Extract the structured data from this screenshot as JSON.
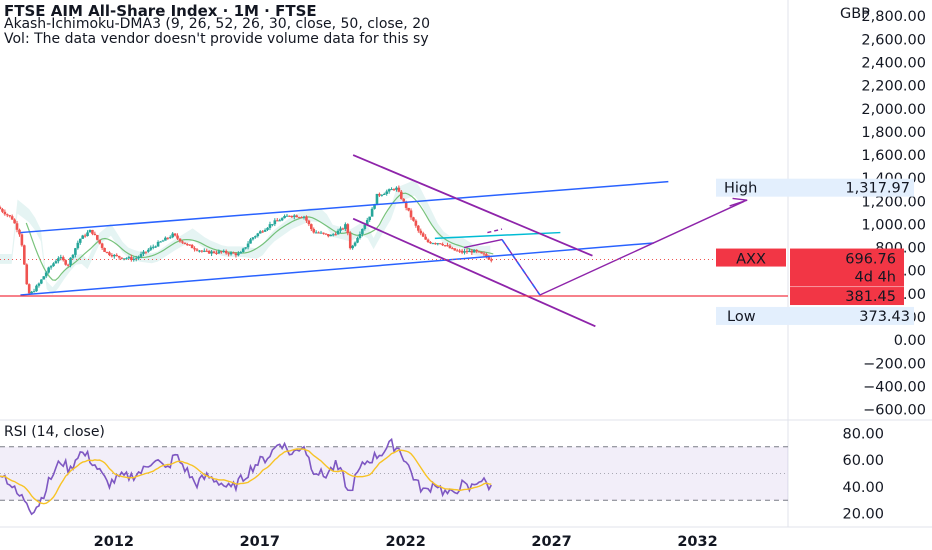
{
  "header": {
    "title": "FTSE AIM All-Share Index · 1M · FTSE",
    "indicator": "Akash-Ichimoku-DMA3 (9, 26, 52, 26, 30, close, 50, close, 20",
    "volume_note": "Vol: The data vendor doesn't provide volume data for this sy"
  },
  "currency": "GBP",
  "colors": {
    "up": "#26a69a",
    "down": "#ef5350",
    "trend_blue": "#2962ff",
    "channel_purple": "#8e24aa",
    "rsi_line": "#7e57c2",
    "rsi_ma": "#f7c325",
    "red_level": "#f23645"
  },
  "chart_data": [
    {
      "type": "candlestick",
      "y_axis_ticks": [
        "2,800.00",
        "2,600.00",
        "2,400.00",
        "2,200.00",
        "2,000.00",
        "1,800.00",
        "1,600.00",
        "1,400.00",
        "1,200.00",
        "1,000.00",
        "800.00",
        "600.00",
        "400.00",
        "200.00",
        "0.00",
        "−200.00",
        "−400.00",
        "−600.00"
      ],
      "y_axis_values": [
        2800,
        2600,
        2400,
        2200,
        2000,
        1800,
        1600,
        1400,
        1200,
        1000,
        800,
        600,
        400,
        200,
        0,
        -200,
        -400,
        -600
      ],
      "ylim": [
        -690,
        2940
      ],
      "x_axis_ticks": [
        "2012",
        "2017",
        "2022",
        "2027",
        "2032"
      ],
      "x_axis_values": [
        2012,
        2017,
        2022,
        2027,
        2032
      ],
      "xlim": [
        2008.1,
        2035.1
      ],
      "labels": {
        "high": {
          "text": "High",
          "value": "1,317.97"
        },
        "symbol": {
          "text": "AXX",
          "value": "696.76",
          "countdown": "4d 4h"
        },
        "level": {
          "value": "381.45"
        },
        "low": {
          "text": "Low",
          "value": "373.43"
        }
      },
      "ohlc_anchors": [
        [
          2008.1,
          1150
        ],
        [
          2008.6,
          1050
        ],
        [
          2008.9,
          900
        ],
        [
          2009.1,
          470
        ],
        [
          2009.2,
          390
        ],
        [
          2009.5,
          480
        ],
        [
          2009.8,
          600
        ],
        [
          2010.2,
          720
        ],
        [
          2010.5,
          650
        ],
        [
          2010.9,
          870
        ],
        [
          2011.3,
          950
        ],
        [
          2011.8,
          760
        ],
        [
          2012.2,
          720
        ],
        [
          2012.8,
          700
        ],
        [
          2013.5,
          820
        ],
        [
          2014.1,
          910
        ],
        [
          2014.6,
          820
        ],
        [
          2015.2,
          760
        ],
        [
          2015.8,
          760
        ],
        [
          2016.4,
          740
        ],
        [
          2016.8,
          880
        ],
        [
          2017.5,
          1010
        ],
        [
          2018.1,
          1080
        ],
        [
          2018.6,
          1070
        ],
        [
          2018.9,
          940
        ],
        [
          2019.5,
          900
        ],
        [
          2019.9,
          960
        ],
        [
          2020.05,
          1000
        ],
        [
          2020.2,
          780
        ],
        [
          2020.4,
          880
        ],
        [
          2020.9,
          1100
        ],
        [
          2021.1,
          1250
        ],
        [
          2021.5,
          1290
        ],
        [
          2021.75,
          1318
        ],
        [
          2022.1,
          1150
        ],
        [
          2022.5,
          950
        ],
        [
          2022.8,
          850
        ],
        [
          2023.3,
          840
        ],
        [
          2023.7,
          780
        ],
        [
          2024.0,
          760
        ],
        [
          2024.4,
          770
        ],
        [
          2024.8,
          730
        ],
        [
          2025.0,
          697
        ]
      ],
      "annotations": [
        "ascending channel upper line",
        "ascending channel lower line",
        "descending channel upper line",
        "descending channel lower line",
        "projected path",
        "support level 381.45"
      ]
    },
    {
      "type": "line",
      "title": "RSI (14, close)",
      "y_axis_ticks": [
        "80.00",
        "60.00",
        "40.00",
        "20.00"
      ],
      "y_axis_values": [
        80,
        60,
        40,
        20
      ],
      "ylim": [
        10,
        90
      ],
      "overbought": 70,
      "oversold": 30,
      "rsi_anchors": [
        [
          2008.1,
          52
        ],
        [
          2008.4,
          44
        ],
        [
          2008.7,
          34
        ],
        [
          2009.0,
          30
        ],
        [
          2009.2,
          22
        ],
        [
          2009.45,
          28
        ],
        [
          2009.8,
          45
        ],
        [
          2010.2,
          60
        ],
        [
          2010.5,
          52
        ],
        [
          2010.8,
          66
        ],
        [
          2011.1,
          63
        ],
        [
          2011.4,
          55
        ],
        [
          2011.8,
          42
        ],
        [
          2012.2,
          47
        ],
        [
          2012.6,
          48
        ],
        [
          2013.0,
          52
        ],
        [
          2013.4,
          62
        ],
        [
          2013.8,
          52
        ],
        [
          2014.1,
          64
        ],
        [
          2014.5,
          52
        ],
        [
          2014.8,
          42
        ],
        [
          2015.2,
          48
        ],
        [
          2015.6,
          44
        ],
        [
          2016.0,
          38
        ],
        [
          2016.4,
          46
        ],
        [
          2016.8,
          56
        ],
        [
          2017.3,
          63
        ],
        [
          2017.7,
          74
        ],
        [
          2018.1,
          64
        ],
        [
          2018.5,
          72
        ],
        [
          2018.8,
          54
        ],
        [
          2019.2,
          48
        ],
        [
          2019.6,
          56
        ],
        [
          2019.9,
          46
        ],
        [
          2020.05,
          33
        ],
        [
          2020.3,
          48
        ],
        [
          2020.6,
          58
        ],
        [
          2020.9,
          62
        ],
        [
          2021.2,
          66
        ],
        [
          2021.5,
          72
        ],
        [
          2021.8,
          68
        ],
        [
          2022.1,
          55
        ],
        [
          2022.4,
          42
        ],
        [
          2022.7,
          36
        ],
        [
          2023.0,
          44
        ],
        [
          2023.3,
          36
        ],
        [
          2023.6,
          34
        ],
        [
          2023.9,
          42
        ],
        [
          2024.2,
          38
        ],
        [
          2024.5,
          46
        ],
        [
          2024.8,
          42
        ],
        [
          2025.0,
          38
        ]
      ]
    }
  ]
}
